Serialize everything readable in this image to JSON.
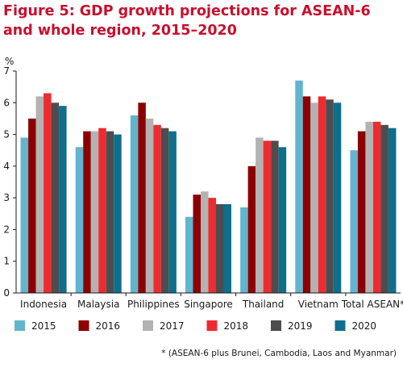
{
  "figure": {
    "title": "Figure 5: GDP growth projections for ASEAN-6 and whole region, 2015–2020",
    "footnote": "* (ASEAN-6 plus Brunei, Cambodia, Laos and Myanmar)"
  },
  "chart_data": {
    "type": "bar",
    "title": "Figure 5: GDP growth projections for ASEAN-6 and whole region, 2015–2020",
    "ylabel": "%",
    "xlabel": "",
    "ylim": [
      0,
      7
    ],
    "yticks": [
      0,
      1,
      2,
      3,
      4,
      5,
      6,
      7
    ],
    "grid": false,
    "legend_position": "bottom",
    "categories": [
      "Indonesia",
      "Malaysia",
      "Philippines",
      "Singapore",
      "Thailand",
      "Vietnam",
      "Total ASEAN*"
    ],
    "series": [
      {
        "name": "2015",
        "color": "#62b5cf",
        "values": [
          4.9,
          4.6,
          5.6,
          2.4,
          2.7,
          6.7,
          4.5
        ]
      },
      {
        "name": "2016",
        "color": "#8b0000",
        "values": [
          5.5,
          5.1,
          6.0,
          3.1,
          4.0,
          6.2,
          5.1
        ]
      },
      {
        "name": "2017",
        "color": "#b3b3b3",
        "values": [
          6.2,
          5.1,
          5.5,
          3.2,
          4.9,
          6.0,
          5.4
        ]
      },
      {
        "name": "2018",
        "color": "#ee2b2f",
        "values": [
          6.3,
          5.2,
          5.3,
          3.0,
          4.8,
          6.2,
          5.4
        ]
      },
      {
        "name": "2019",
        "color": "#4d4d4f",
        "values": [
          6.0,
          5.1,
          5.2,
          2.8,
          4.8,
          6.1,
          5.3
        ]
      },
      {
        "name": "2020",
        "color": "#0e6f8c",
        "values": [
          5.9,
          5.0,
          5.1,
          2.8,
          4.6,
          6.0,
          5.2
        ]
      }
    ]
  }
}
